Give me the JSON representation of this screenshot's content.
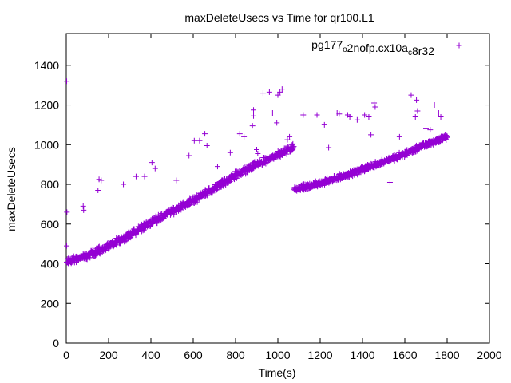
{
  "chart_data": {
    "type": "scatter",
    "title": "maxDeleteUsecs vs Time for qr100.L1",
    "xlabel": "Time(s)",
    "ylabel": "maxDeleteUsecs",
    "xlim": [
      0,
      2000
    ],
    "ylim": [
      0,
      1560
    ],
    "x_ticks": [
      0,
      200,
      400,
      600,
      800,
      1000,
      1200,
      1400,
      1600,
      1800,
      2000
    ],
    "y_ticks": [
      0,
      200,
      400,
      600,
      800,
      1000,
      1200,
      1400
    ],
    "grid": false,
    "legend_position": "top-right",
    "series_color": "#9400d3",
    "series": [
      {
        "legend_parts": [
          {
            "text": "pg177",
            "sub": false
          },
          {
            "text": "o",
            "sub": true
          },
          {
            "text": "2nofp.cx10a",
            "sub": false
          },
          {
            "text": "c",
            "sub": true
          },
          {
            "text": "8r32",
            "sub": false
          }
        ],
        "trend_segments": [
          {
            "x": [
              0,
              100,
              200,
              300,
              400,
              500,
              600,
              700,
              800,
              900,
              1000,
              1075
            ],
            "y": [
              410,
              440,
              490,
              545,
              610,
              665,
              720,
              780,
              845,
              900,
              950,
              990
            ],
            "step": 2,
            "spread": 22
          },
          {
            "x": [
              1075,
              1200,
              1300,
              1400,
              1500,
              1600,
              1700,
              1800
            ],
            "y": [
              775,
              805,
              840,
              875,
              915,
              955,
              1000,
              1040
            ],
            "step": 2,
            "spread": 18
          }
        ],
        "outliers": [
          {
            "x": 2,
            "y": 1320
          },
          {
            "x": 3,
            "y": 660
          },
          {
            "x": 2,
            "y": 490
          },
          {
            "x": 80,
            "y": 690
          },
          {
            "x": 82,
            "y": 670
          },
          {
            "x": 150,
            "y": 770
          },
          {
            "x": 155,
            "y": 825
          },
          {
            "x": 165,
            "y": 820
          },
          {
            "x": 270,
            "y": 800
          },
          {
            "x": 330,
            "y": 840
          },
          {
            "x": 370,
            "y": 840
          },
          {
            "x": 405,
            "y": 910
          },
          {
            "x": 420,
            "y": 880
          },
          {
            "x": 520,
            "y": 820
          },
          {
            "x": 580,
            "y": 945
          },
          {
            "x": 605,
            "y": 1020
          },
          {
            "x": 630,
            "y": 1020
          },
          {
            "x": 655,
            "y": 1055
          },
          {
            "x": 665,
            "y": 995
          },
          {
            "x": 715,
            "y": 890
          },
          {
            "x": 775,
            "y": 960
          },
          {
            "x": 820,
            "y": 1055
          },
          {
            "x": 840,
            "y": 1040
          },
          {
            "x": 870,
            "y": 890
          },
          {
            "x": 880,
            "y": 1095
          },
          {
            "x": 885,
            "y": 1145
          },
          {
            "x": 885,
            "y": 1175
          },
          {
            "x": 900,
            "y": 975
          },
          {
            "x": 905,
            "y": 955
          },
          {
            "x": 930,
            "y": 1260
          },
          {
            "x": 960,
            "y": 1265
          },
          {
            "x": 1000,
            "y": 1250
          },
          {
            "x": 1010,
            "y": 1265
          },
          {
            "x": 1020,
            "y": 1280
          },
          {
            "x": 975,
            "y": 1160
          },
          {
            "x": 995,
            "y": 1110
          },
          {
            "x": 1045,
            "y": 1025
          },
          {
            "x": 1055,
            "y": 1040
          },
          {
            "x": 1120,
            "y": 1150
          },
          {
            "x": 1185,
            "y": 1150
          },
          {
            "x": 1220,
            "y": 1100
          },
          {
            "x": 1240,
            "y": 985
          },
          {
            "x": 1280,
            "y": 1160
          },
          {
            "x": 1290,
            "y": 1155
          },
          {
            "x": 1330,
            "y": 1150
          },
          {
            "x": 1340,
            "y": 1140
          },
          {
            "x": 1375,
            "y": 1125
          },
          {
            "x": 1410,
            "y": 1150
          },
          {
            "x": 1430,
            "y": 1140
          },
          {
            "x": 1440,
            "y": 1050
          },
          {
            "x": 1455,
            "y": 1210
          },
          {
            "x": 1460,
            "y": 1190
          },
          {
            "x": 1530,
            "y": 810
          },
          {
            "x": 1575,
            "y": 1040
          },
          {
            "x": 1630,
            "y": 1250
          },
          {
            "x": 1650,
            "y": 1140
          },
          {
            "x": 1655,
            "y": 1225
          },
          {
            "x": 1660,
            "y": 1170
          },
          {
            "x": 1700,
            "y": 1080
          },
          {
            "x": 1720,
            "y": 1075
          },
          {
            "x": 1740,
            "y": 1200
          },
          {
            "x": 1760,
            "y": 1160
          },
          {
            "x": 1770,
            "y": 1140
          }
        ]
      }
    ]
  }
}
